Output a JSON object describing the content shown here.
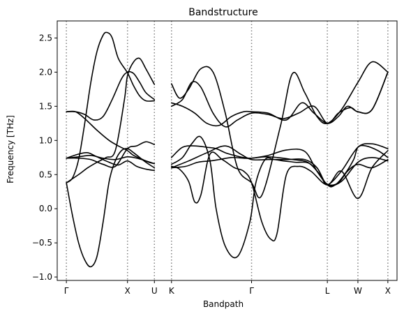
{
  "chart_data": {
    "type": "line",
    "title": "Bandstructure",
    "xlabel": "Bandpath",
    "ylabel": "Frequency [THz]",
    "ylim": [
      -1.05,
      2.75
    ],
    "yticks": [
      -1.0,
      -0.5,
      0.0,
      0.5,
      1.0,
      1.5,
      2.0,
      2.5
    ],
    "ytick_labels": [
      "−1.0",
      "−0.5",
      "0.0",
      "0.5",
      "1.0",
      "1.5",
      "2.0",
      "2.5"
    ],
    "high_symmetry_points": [
      {
        "label": "Γ",
        "x": 0.0
      },
      {
        "label": "X",
        "x": 1.0
      },
      {
        "label": "U",
        "x": 1.44
      },
      {
        "label": "K",
        "x": 1.72
      },
      {
        "label": "Γ",
        "x": 3.03
      },
      {
        "label": "L",
        "x": 4.27
      },
      {
        "label": "W",
        "x": 4.77
      },
      {
        "label": "X",
        "x": 5.26
      }
    ],
    "xlim": [
      -0.15,
      5.41
    ],
    "grid": false,
    "vlines": "dotted at high-symmetry points",
    "line_color": "#000000",
    "vline_color": "#808080",
    "series": [
      {
        "x": [
          0.0,
          0.1,
          0.2,
          0.3,
          0.4,
          0.5,
          0.6,
          0.67,
          0.75,
          0.85,
          1.0,
          1.1,
          1.2,
          1.3,
          1.44
        ],
        "values": [
          0.38,
          0.45,
          0.72,
          1.25,
          1.85,
          2.3,
          2.54,
          2.58,
          2.5,
          2.2,
          1.99,
          1.8,
          1.65,
          1.58,
          1.58
        ]
      },
      {
        "x": [
          0.0,
          0.15,
          0.3,
          0.45,
          0.6,
          0.75,
          0.9,
          1.0,
          1.1,
          1.2,
          1.3,
          1.44
        ],
        "values": [
          1.42,
          1.42,
          1.38,
          1.3,
          1.35,
          1.6,
          1.9,
          2.0,
          1.98,
          1.85,
          1.7,
          1.6
        ]
      },
      {
        "x": [
          0.0,
          0.15,
          0.3,
          0.5,
          0.7,
          0.85,
          1.0,
          1.1,
          1.25,
          1.35,
          1.44
        ],
        "values": [
          1.42,
          1.42,
          1.32,
          1.15,
          1.0,
          0.92,
          0.85,
          0.78,
          0.72,
          0.68,
          0.66
        ]
      },
      {
        "x": [
          0.0,
          0.2,
          0.35,
          0.5,
          0.65,
          0.8,
          0.95,
          1.0,
          1.1,
          1.2,
          1.3,
          1.44
        ],
        "values": [
          0.38,
          0.5,
          0.6,
          0.68,
          0.75,
          0.85,
          1.6,
          1.95,
          2.15,
          2.2,
          2.05,
          1.82
        ]
      },
      {
        "x": [
          0.0,
          0.1,
          0.2,
          0.3,
          0.4,
          0.5,
          0.6,
          0.7,
          0.8,
          0.9,
          1.0,
          1.1,
          1.2,
          1.3,
          1.44
        ],
        "values": [
          0.38,
          -0.1,
          -0.5,
          -0.75,
          -0.85,
          -0.7,
          -0.2,
          0.4,
          0.7,
          0.85,
          0.88,
          0.82,
          0.75,
          0.68,
          0.6
        ]
      },
      {
        "x": [
          0.0,
          0.2,
          0.4,
          0.6,
          0.8,
          1.0,
          1.15,
          1.3,
          1.44
        ],
        "values": [
          0.74,
          0.76,
          0.78,
          0.74,
          0.72,
          0.76,
          0.74,
          0.7,
          0.66
        ]
      },
      {
        "x": [
          0.0,
          0.2,
          0.35,
          0.5,
          0.7,
          0.85,
          1.0,
          1.15,
          1.3,
          1.44
        ],
        "values": [
          0.74,
          0.8,
          0.82,
          0.76,
          0.68,
          0.64,
          0.7,
          0.62,
          0.58,
          0.56
        ]
      },
      {
        "x": [
          0.0,
          0.2,
          0.4,
          0.6,
          0.8,
          1.0,
          1.15,
          1.3,
          1.44
        ],
        "values": [
          0.74,
          0.74,
          0.72,
          0.65,
          0.62,
          0.88,
          0.92,
          0.98,
          0.94
        ]
      },
      {
        "x": [
          1.72,
          1.85,
          2.0,
          2.2,
          2.4,
          2.6,
          2.8,
          3.03,
          3.2,
          3.5,
          3.7,
          3.9,
          4.1,
          4.27,
          4.5,
          4.77,
          5.0,
          5.26
        ],
        "values": [
          1.83,
          1.62,
          1.75,
          2.05,
          2.0,
          1.4,
          0.6,
          0.38,
          0.2,
          1.2,
          1.98,
          1.7,
          1.35,
          1.25,
          1.45,
          1.85,
          2.15,
          2.0
        ]
      },
      {
        "x": [
          1.72,
          1.9,
          2.1,
          2.3,
          2.5,
          2.7,
          2.9,
          3.03,
          3.3,
          3.6,
          3.85,
          4.05,
          4.27,
          4.45,
          4.6,
          4.77,
          5.0,
          5.26
        ],
        "values": [
          1.55,
          1.5,
          1.4,
          1.25,
          1.22,
          1.35,
          1.42,
          1.42,
          1.4,
          1.3,
          1.55,
          1.4,
          1.25,
          1.35,
          1.5,
          1.42,
          1.45,
          2.0
        ]
      },
      {
        "x": [
          1.72,
          1.9,
          2.05,
          2.2,
          2.4,
          2.6,
          2.8,
          3.03,
          3.3,
          3.55,
          3.8,
          4.05,
          4.27,
          4.45,
          4.65,
          4.77,
          5.0,
          5.26
        ],
        "values": [
          1.5,
          1.6,
          1.85,
          1.78,
          1.4,
          1.2,
          1.3,
          1.4,
          1.38,
          1.32,
          1.4,
          1.5,
          1.25,
          1.4,
          1.48,
          1.42,
          1.45,
          2.0
        ]
      },
      {
        "x": [
          1.72,
          1.85,
          2.0,
          2.1,
          2.2,
          2.35,
          2.55,
          2.75,
          2.9,
          3.03,
          3.2,
          3.35,
          3.45,
          3.6,
          3.8,
          4.0,
          4.27,
          4.5,
          4.77,
          5.0,
          5.26
        ],
        "values": [
          0.62,
          0.58,
          0.4,
          0.1,
          0.2,
          0.8,
          0.72,
          0.6,
          0.55,
          0.38,
          -0.2,
          -0.45,
          -0.35,
          0.5,
          0.62,
          0.55,
          0.35,
          0.55,
          0.15,
          0.6,
          0.85
        ]
      },
      {
        "x": [
          1.72,
          1.9,
          2.1,
          2.3,
          2.45,
          2.6,
          2.75,
          2.9,
          3.03,
          3.25,
          3.45,
          3.7,
          3.95,
          4.15,
          4.27,
          4.5,
          4.77,
          5.0,
          5.26
        ],
        "values": [
          0.75,
          0.9,
          0.92,
          0.9,
          0.88,
          0.82,
          0.78,
          0.75,
          0.74,
          0.76,
          0.75,
          0.72,
          0.68,
          0.5,
          0.35,
          0.55,
          0.9,
          0.95,
          0.88
        ]
      },
      {
        "x": [
          1.72,
          1.95,
          2.15,
          2.35,
          2.5,
          2.7,
          2.9,
          3.03,
          3.3,
          3.6,
          3.9,
          4.1,
          4.27,
          4.45,
          4.6,
          4.77,
          5.0,
          5.26
        ],
        "values": [
          0.6,
          0.62,
          0.68,
          0.7,
          0.72,
          0.75,
          0.74,
          0.74,
          0.78,
          0.86,
          0.84,
          0.55,
          0.36,
          0.38,
          0.55,
          0.65,
          0.6,
          0.72
        ]
      },
      {
        "x": [
          1.72,
          1.9,
          2.05,
          2.2,
          2.35,
          2.45,
          2.6,
          2.8,
          3.0,
          3.1,
          3.25,
          3.4,
          3.55,
          3.75,
          4.0,
          4.27,
          4.4,
          4.55,
          4.7,
          4.77,
          4.9,
          5.1,
          5.26
        ],
        "values": [
          0.65,
          0.75,
          0.95,
          1.05,
          0.7,
          0.0,
          -0.55,
          -0.7,
          -0.2,
          0.38,
          0.72,
          0.72,
          0.7,
          0.68,
          0.65,
          0.35,
          0.35,
          0.5,
          0.72,
          0.9,
          0.92,
          0.85,
          0.75
        ]
      },
      {
        "x": [
          1.72,
          2.0,
          2.3,
          2.6,
          2.85,
          3.03,
          3.3,
          3.6,
          3.9,
          4.1,
          4.27,
          4.5,
          4.77,
          5.0,
          5.26
        ],
        "values": [
          0.6,
          0.7,
          0.82,
          0.92,
          0.8,
          0.72,
          0.72,
          0.72,
          0.72,
          0.6,
          0.35,
          0.4,
          0.68,
          0.75,
          0.7
        ]
      }
    ]
  }
}
